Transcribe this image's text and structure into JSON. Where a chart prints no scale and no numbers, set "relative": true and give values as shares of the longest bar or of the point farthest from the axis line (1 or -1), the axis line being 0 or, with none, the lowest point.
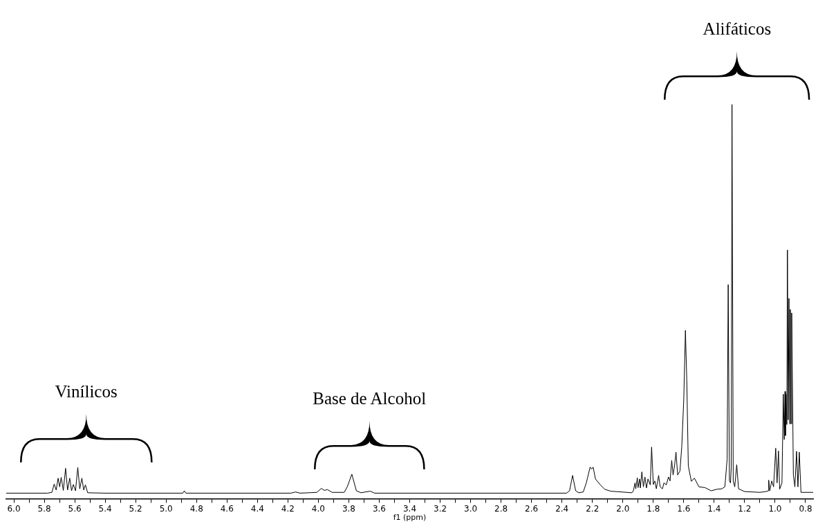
{
  "chart_data": {
    "type": "line",
    "relative": true,
    "xlabel": "f1 (ppm)",
    "grid": false,
    "legend": false,
    "marker": "none",
    "xlim": [
      6.05,
      0.75
    ],
    "xticks": [
      {
        "value": 6.0,
        "label": "6.0"
      },
      {
        "value": 5.9,
        "label": null
      },
      {
        "value": 5.8,
        "label": "5.8"
      },
      {
        "value": 5.7,
        "label": null
      },
      {
        "value": 5.6,
        "label": "5.6"
      },
      {
        "value": 5.5,
        "label": null
      },
      {
        "value": 5.4,
        "label": "5.4"
      },
      {
        "value": 5.3,
        "label": null
      },
      {
        "value": 5.2,
        "label": "5.2"
      },
      {
        "value": 5.1,
        "label": null
      },
      {
        "value": 5.0,
        "label": "5.0"
      },
      {
        "value": 4.9,
        "label": null
      },
      {
        "value": 4.8,
        "label": "4.8"
      },
      {
        "value": 4.7,
        "label": null
      },
      {
        "value": 4.6,
        "label": "4.6"
      },
      {
        "value": 4.5,
        "label": null
      },
      {
        "value": 4.4,
        "label": "4.4"
      },
      {
        "value": 4.3,
        "label": null
      },
      {
        "value": 4.2,
        "label": "4.2"
      },
      {
        "value": 4.1,
        "label": null
      },
      {
        "value": 4.0,
        "label": "4.0"
      },
      {
        "value": 3.9,
        "label": null
      },
      {
        "value": 3.8,
        "label": "3.8"
      },
      {
        "value": 3.7,
        "label": null
      },
      {
        "value": 3.6,
        "label": "3.6"
      },
      {
        "value": 3.5,
        "label": null
      },
      {
        "value": 3.4,
        "label": "3.4"
      },
      {
        "value": 3.3,
        "label": null
      },
      {
        "value": 3.2,
        "label": "3.2"
      },
      {
        "value": 3.1,
        "label": null
      },
      {
        "value": 3.0,
        "label": "3.0"
      },
      {
        "value": 2.9,
        "label": null
      },
      {
        "value": 2.8,
        "label": "2.8"
      },
      {
        "value": 2.7,
        "label": null
      },
      {
        "value": 2.6,
        "label": "2.6"
      },
      {
        "value": 2.5,
        "label": null
      },
      {
        "value": 2.4,
        "label": "2.4"
      },
      {
        "value": 2.3,
        "label": null
      },
      {
        "value": 2.2,
        "label": "2.2"
      },
      {
        "value": 2.1,
        "label": null
      },
      {
        "value": 2.0,
        "label": "2.0"
      },
      {
        "value": 1.9,
        "label": null
      },
      {
        "value": 1.8,
        "label": "1.8"
      },
      {
        "value": 1.7,
        "label": null
      },
      {
        "value": 1.6,
        "label": "1.6"
      },
      {
        "value": 1.5,
        "label": null
      },
      {
        "value": 1.4,
        "label": "1.4"
      },
      {
        "value": 1.3,
        "label": null
      },
      {
        "value": 1.2,
        "label": "1.2"
      },
      {
        "value": 1.1,
        "label": null
      },
      {
        "value": 1.0,
        "label": "1.0"
      },
      {
        "value": 0.9,
        "label": null
      },
      {
        "value": 0.8,
        "label": "0.8"
      }
    ],
    "annotations": [
      "Vinílicos",
      "Base de Alcohol",
      "Alifáticos"
    ],
    "series": [
      {
        "color": "#000000",
        "x": [
          6.05,
          5.78,
          5.75,
          5.735,
          5.722,
          5.709,
          5.699,
          5.689,
          5.675,
          5.66,
          5.647,
          5.633,
          5.621,
          5.609,
          5.595,
          5.58,
          5.567,
          5.553,
          5.541,
          5.53,
          5.515,
          5.4,
          4.89,
          4.88,
          4.87,
          4.18,
          4.15,
          4.12,
          4.01,
          3.98,
          3.96,
          3.94,
          3.91,
          3.83,
          3.81,
          3.78,
          3.75,
          3.72,
          3.66,
          3.63,
          2.37,
          2.35,
          2.33,
          2.31,
          2.29,
          2.26,
          2.24,
          2.215,
          2.205,
          2.195,
          2.18,
          2.15,
          2.12,
          2.08,
          1.94,
          1.93,
          1.92,
          1.915,
          1.905,
          1.9,
          1.89,
          1.885,
          1.875,
          1.865,
          1.855,
          1.845,
          1.835,
          1.82,
          1.811,
          1.8,
          1.79,
          1.78,
          1.765,
          1.755,
          1.74,
          1.73,
          1.715,
          1.7,
          1.69,
          1.679,
          1.67,
          1.66,
          1.651,
          1.64,
          1.625,
          1.613,
          1.6,
          1.589,
          1.58,
          1.57,
          1.55,
          1.53,
          1.5,
          1.46,
          1.42,
          1.38,
          1.35,
          1.33,
          1.315,
          1.308,
          1.3,
          1.293,
          1.288,
          1.283,
          1.275,
          1.265,
          1.252,
          1.24,
          1.2,
          1.1,
          1.06,
          1.045,
          1.042,
          1.035,
          1.022,
          1.01,
          0.996,
          0.987,
          0.978,
          0.97,
          0.955,
          0.946,
          0.94,
          0.935,
          0.932,
          0.928,
          0.923,
          0.919,
          0.914,
          0.909,
          0.904,
          0.9,
          0.895,
          0.891,
          0.88,
          0.87,
          0.859,
          0.85,
          0.841,
          0.83,
          0.75
        ],
        "values": [
          0.014,
          0.014,
          0.016,
          0.037,
          0.022,
          0.052,
          0.03,
          0.054,
          0.021,
          0.077,
          0.022,
          0.052,
          0.02,
          0.036,
          0.02,
          0.079,
          0.025,
          0.052,
          0.022,
          0.035,
          0.015,
          0.014,
          0.014,
          0.02,
          0.014,
          0.014,
          0.017,
          0.014,
          0.016,
          0.026,
          0.021,
          0.023,
          0.016,
          0.016,
          0.03,
          0.062,
          0.02,
          0.015,
          0.019,
          0.014,
          0.014,
          0.02,
          0.059,
          0.02,
          0.015,
          0.017,
          0.04,
          0.08,
          0.075,
          0.08,
          0.05,
          0.036,
          0.024,
          0.019,
          0.015,
          0.021,
          0.04,
          0.025,
          0.053,
          0.028,
          0.05,
          0.027,
          0.068,
          0.03,
          0.055,
          0.027,
          0.05,
          0.035,
          0.131,
          0.036,
          0.045,
          0.025,
          0.059,
          0.03,
          0.025,
          0.04,
          0.035,
          0.055,
          0.045,
          0.097,
          0.06,
          0.085,
          0.118,
          0.06,
          0.07,
          0.132,
          0.25,
          0.427,
          0.3,
          0.083,
          0.044,
          0.052,
          0.03,
          0.028,
          0.02,
          0.024,
          0.025,
          0.03,
          0.1,
          0.543,
          0.045,
          0.04,
          0.08,
          1.0,
          0.045,
          0.03,
          0.086,
          0.025,
          0.018,
          0.016,
          0.018,
          0.02,
          0.047,
          0.02,
          0.045,
          0.03,
          0.128,
          0.04,
          0.121,
          0.024,
          0.04,
          0.265,
          0.15,
          0.272,
          0.16,
          0.265,
          0.188,
          0.631,
          0.2,
          0.508,
          0.19,
          0.48,
          0.19,
          0.471,
          0.06,
          0.03,
          0.12,
          0.03,
          0.118,
          0.016,
          0.016
        ]
      }
    ]
  }
}
